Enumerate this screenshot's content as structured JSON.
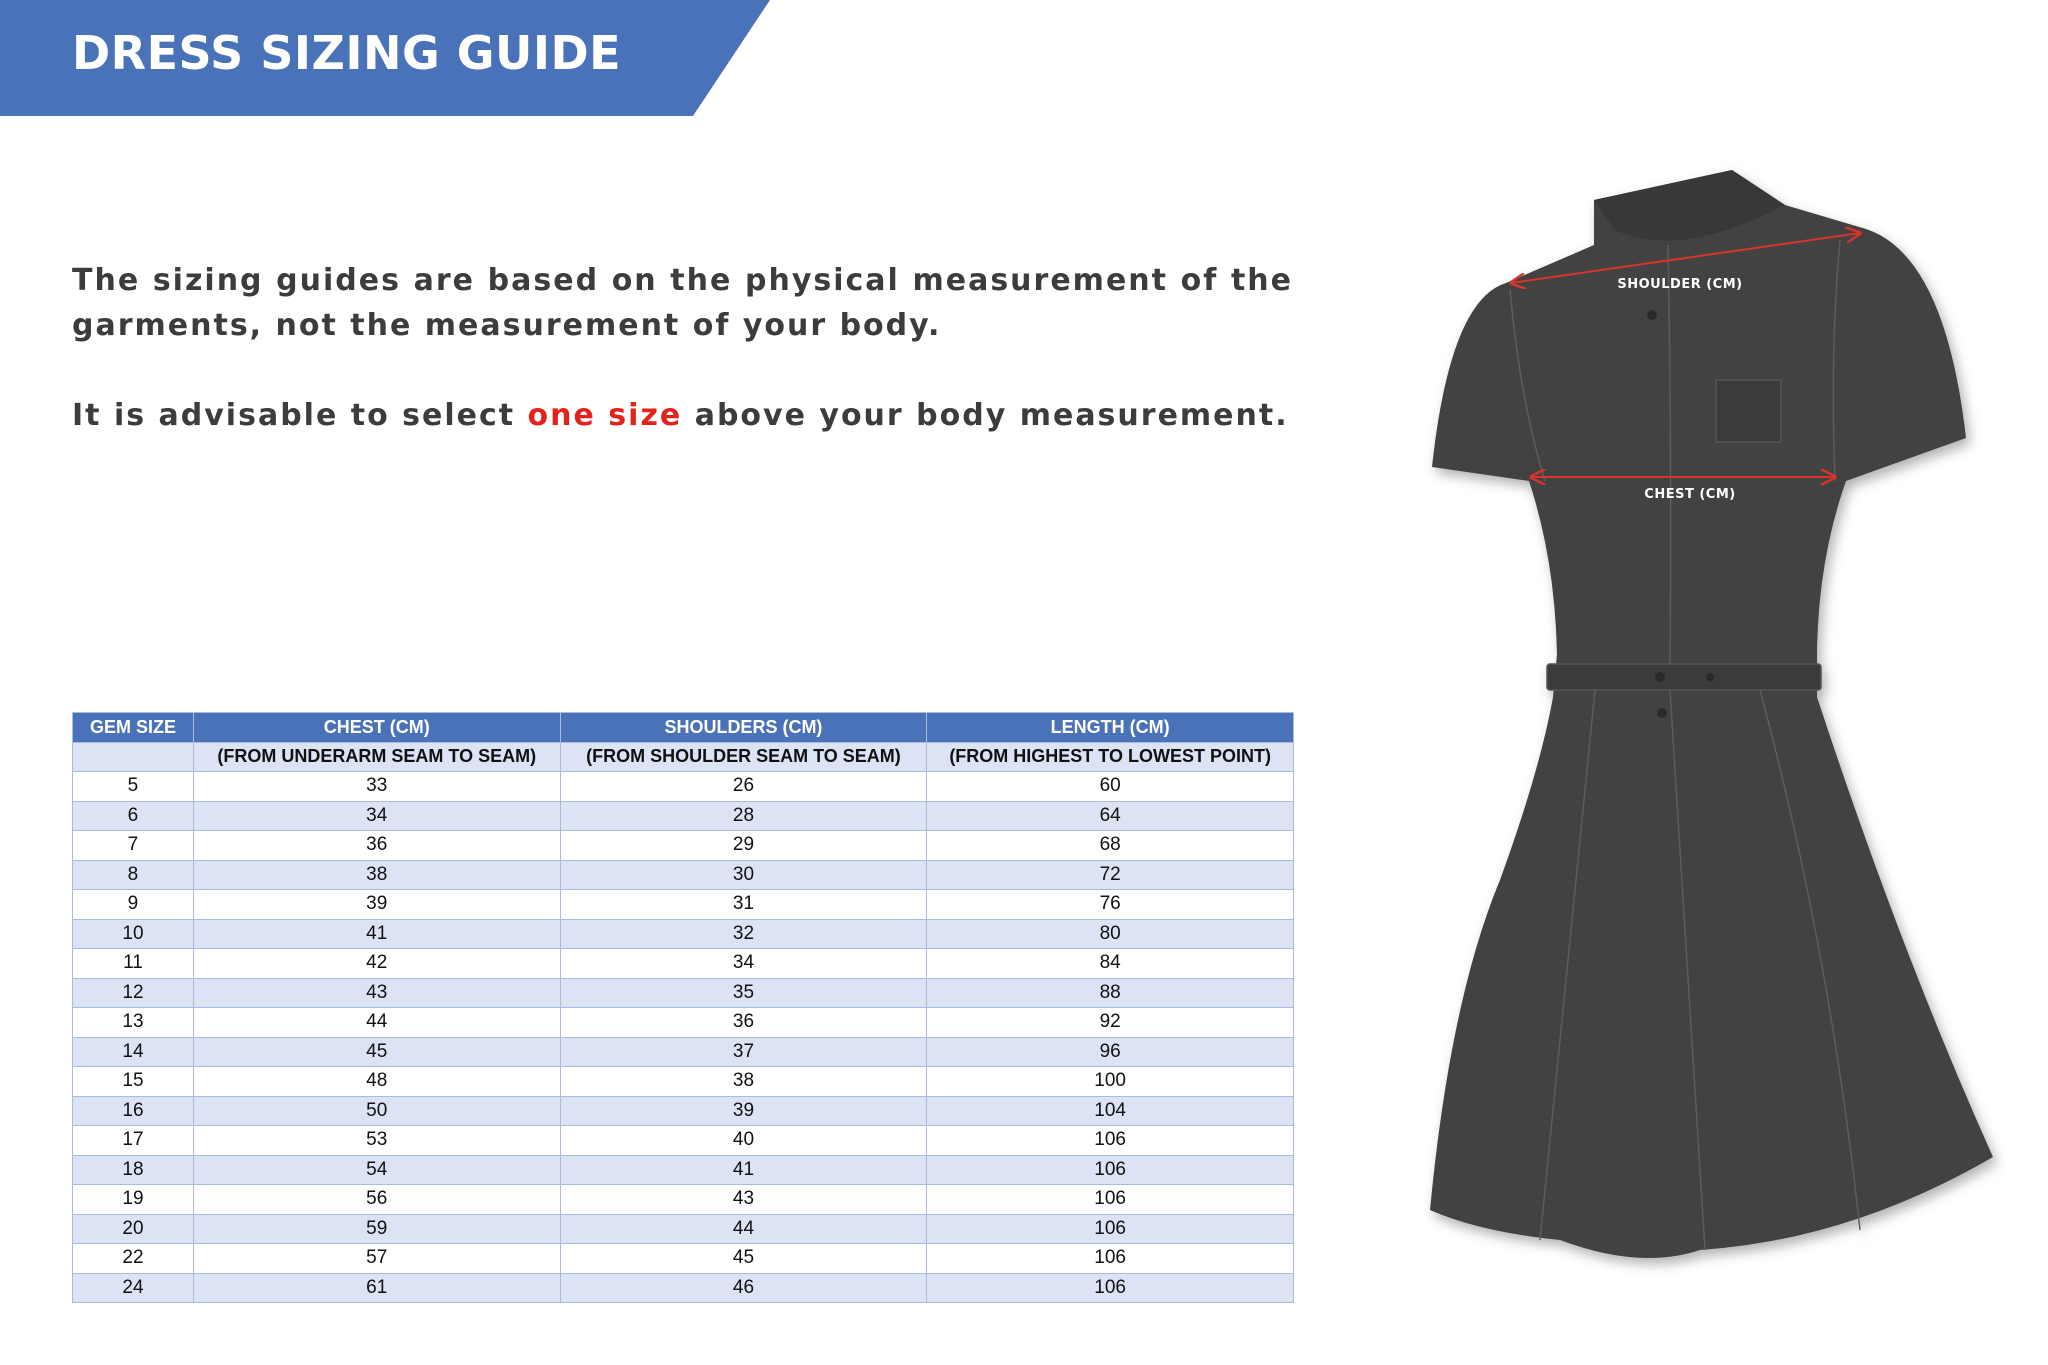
{
  "header": {
    "title": "DRESS SIZING GUIDE",
    "color": "#4a72b8"
  },
  "intro": {
    "line1": "The sizing guides are based on the physical measurement of the garments, not the measurement of your body.",
    "advice_before": "It is advisable to select ",
    "advice_highlight": "one size",
    "advice_after": " above your body measurement.",
    "highlight_color": "#e2231a"
  },
  "table": {
    "columns": [
      {
        "title": "GEM SIZE",
        "subtitle": ""
      },
      {
        "title": "CHEST (CM)",
        "subtitle": "(FROM UNDERARM SEAM TO SEAM)"
      },
      {
        "title": "SHOULDERS (CM)",
        "subtitle": "(FROM SHOULDER SEAM TO SEAM)"
      },
      {
        "title": "LENGTH (CM)",
        "subtitle": "(FROM HIGHEST TO LOWEST POINT)"
      }
    ],
    "rows": [
      [
        "5",
        "33",
        "26",
        "60"
      ],
      [
        "6",
        "34",
        "28",
        "64"
      ],
      [
        "7",
        "36",
        "29",
        "68"
      ],
      [
        "8",
        "38",
        "30",
        "72"
      ],
      [
        "9",
        "39",
        "31",
        "76"
      ],
      [
        "10",
        "41",
        "32",
        "80"
      ],
      [
        "11",
        "42",
        "34",
        "84"
      ],
      [
        "12",
        "43",
        "35",
        "88"
      ],
      [
        "13",
        "44",
        "36",
        "92"
      ],
      [
        "14",
        "45",
        "37",
        "96"
      ],
      [
        "15",
        "48",
        "38",
        "100"
      ],
      [
        "16",
        "50",
        "39",
        "104"
      ],
      [
        "17",
        "53",
        "40",
        "106"
      ],
      [
        "18",
        "54",
        "41",
        "106"
      ],
      [
        "19",
        "56",
        "43",
        "106"
      ],
      [
        "20",
        "59",
        "44",
        "106"
      ],
      [
        "22",
        "57",
        "45",
        "106"
      ],
      [
        "24",
        "61",
        "46",
        "106"
      ]
    ]
  },
  "illustration": {
    "shoulder_label": "SHOULDER (CM)",
    "chest_label": "CHEST (CM)",
    "dress_color": "#424242",
    "arrow_color": "#d9342b"
  }
}
